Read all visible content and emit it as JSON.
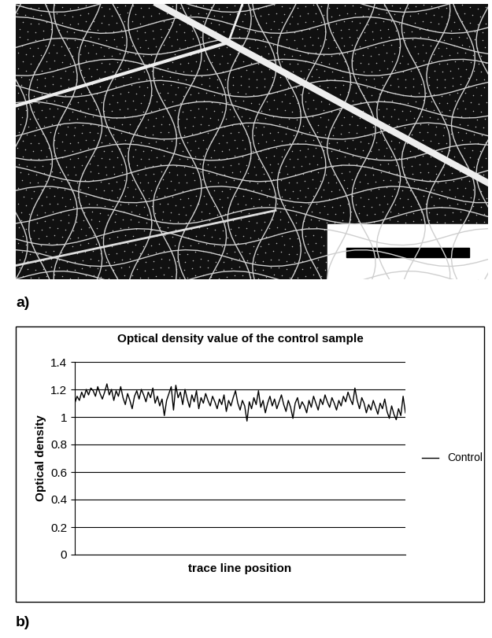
{
  "panel_labels": [
    "a)",
    "b)"
  ],
  "chart_data": {
    "type": "line",
    "title": "Optical density value of the control sample",
    "x_label": "trace line position",
    "y_label": "Optical density",
    "series": [
      {
        "name": "Control",
        "color": "#000000",
        "values": [
          1.1,
          1.15,
          1.12,
          1.18,
          1.14,
          1.2,
          1.16,
          1.21,
          1.19,
          1.15,
          1.22,
          1.17,
          1.13,
          1.18,
          1.24,
          1.16,
          1.2,
          1.12,
          1.19,
          1.15,
          1.22,
          1.14,
          1.09,
          1.17,
          1.12,
          1.06,
          1.15,
          1.19,
          1.13,
          1.2,
          1.16,
          1.11,
          1.18,
          1.14,
          1.21,
          1.1,
          1.15,
          1.08,
          1.13,
          1.01,
          1.12,
          1.17,
          1.22,
          1.05,
          1.23,
          1.14,
          1.18,
          1.09,
          1.2,
          1.13,
          1.07,
          1.16,
          1.11,
          1.19,
          1.06,
          1.14,
          1.1,
          1.17,
          1.12,
          1.08,
          1.15,
          1.11,
          1.06,
          1.13,
          1.09,
          1.16,
          1.04,
          1.12,
          1.08,
          1.14,
          1.19,
          1.1,
          1.05,
          1.12,
          1.08,
          0.97,
          1.11,
          1.06,
          1.14,
          1.09,
          1.19,
          1.07,
          1.12,
          1.03,
          1.1,
          1.15,
          1.08,
          1.13,
          1.06,
          1.11,
          1.16,
          1.09,
          1.04,
          1.12,
          1.07,
          0.99,
          1.1,
          1.14,
          1.06,
          1.11,
          1.08,
          1.03,
          1.12,
          1.07,
          1.15,
          1.1,
          1.05,
          1.13,
          1.09,
          1.16,
          1.11,
          1.07,
          1.14,
          1.1,
          1.05,
          1.12,
          1.08,
          1.15,
          1.11,
          1.18,
          1.13,
          1.09,
          1.21,
          1.12,
          1.06,
          1.14,
          1.1,
          1.03,
          1.09,
          1.05,
          1.12,
          1.07,
          1.02,
          1.1,
          1.06,
          1.13,
          1.04,
          0.99,
          1.08,
          1.02,
          0.98,
          1.06,
          1.01,
          1.15,
          1.03
        ]
      }
    ],
    "ylim": [
      0,
      1.4
    ],
    "yticks": [
      0,
      0.2,
      0.4,
      0.6,
      0.8,
      1,
      1.2,
      1.4
    ],
    "grid": true,
    "legend": "right",
    "tick_labels": "y"
  }
}
